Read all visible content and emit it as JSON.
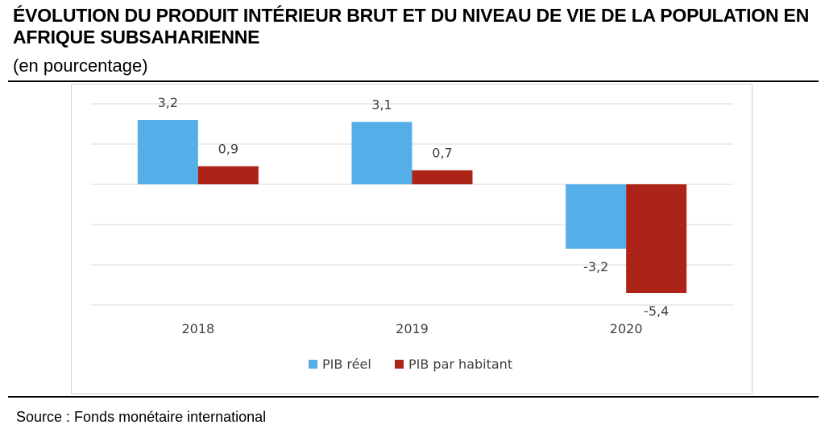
{
  "title": "ÉVOLUTION DU PRODUIT INTÉRIEUR BRUT ET DU NIVEAU DE VIE DE LA POPULATION EN AFRIQUE SUBSAHARIENNE",
  "subtitle": "(en pourcentage)",
  "source": "Source : Fonds monétaire international",
  "colors": {
    "pib_reel": "#55aee8",
    "pib_habitant": "#ab2417",
    "grid": "#d9d9d9"
  },
  "chart_data": {
    "type": "bar",
    "categories": [
      "2018",
      "2019",
      "2020"
    ],
    "series": [
      {
        "name": "PIB réel",
        "values": [
          3.2,
          3.1,
          -3.2
        ],
        "labels": [
          "3,2",
          "3,1",
          "-3,2"
        ]
      },
      {
        "name": "PIB par habitant",
        "values": [
          0.9,
          0.7,
          -5.4
        ],
        "labels": [
          "0,9",
          "0,7",
          "-5,4"
        ]
      }
    ],
    "ylim": [
      -6,
      4
    ],
    "grid": true,
    "legend_position": "bottom"
  }
}
